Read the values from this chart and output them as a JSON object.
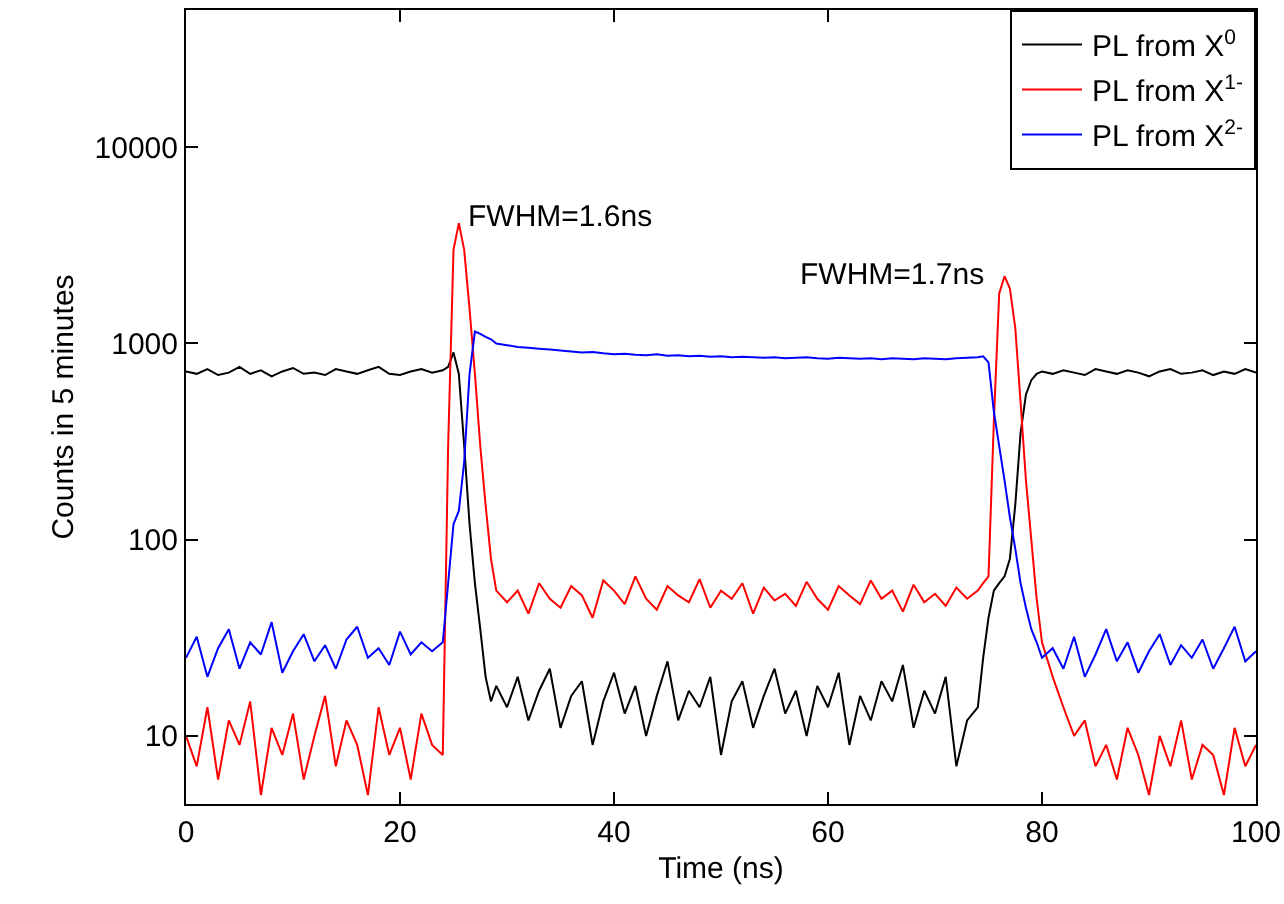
{
  "chart_data": {
    "type": "line",
    "xlabel": "Time (ns)",
    "ylabel": "Counts in 5 minutes",
    "log": "y",
    "legend": "top right",
    "xlim": [
      0,
      100
    ],
    "xticks": [
      0,
      20,
      40,
      60,
      80,
      100
    ],
    "ylim": [
      4.5,
      50000
    ],
    "yticks": [
      10,
      100,
      1000,
      10000
    ],
    "x": [
      0,
      1,
      2,
      3,
      4,
      5,
      6,
      7,
      8,
      9,
      10,
      11,
      12,
      13,
      14,
      15,
      16,
      17,
      18,
      19,
      20,
      21,
      22,
      23,
      24,
      24.5,
      25,
      25.5,
      26,
      26.5,
      27,
      27.5,
      28,
      28.5,
      29,
      30,
      31,
      32,
      33,
      34,
      35,
      36,
      37,
      38,
      39,
      40,
      41,
      42,
      43,
      44,
      45,
      46,
      47,
      48,
      49,
      50,
      51,
      52,
      53,
      54,
      55,
      56,
      57,
      58,
      59,
      60,
      61,
      62,
      63,
      64,
      65,
      66,
      67,
      68,
      69,
      70,
      71,
      72,
      73,
      74,
      74.5,
      75,
      75.5,
      76,
      76.5,
      77,
      77.5,
      78,
      78.5,
      79,
      79.5,
      80,
      81,
      82,
      83,
      84,
      85,
      86,
      87,
      88,
      89,
      90,
      91,
      92,
      93,
      94,
      95,
      96,
      97,
      98,
      99,
      100
    ],
    "series": [
      {
        "name": "PL from X$^{0}$",
        "color": "#000000",
        "values": [
          720,
          700,
          740,
          690,
          710,
          760,
          700,
          730,
          680,
          720,
          750,
          700,
          710,
          690,
          740,
          720,
          700,
          730,
          760,
          700,
          690,
          720,
          740,
          710,
          730,
          760,
          900,
          700,
          300,
          120,
          60,
          35,
          20,
          15,
          18,
          14,
          20,
          12,
          17,
          22,
          11,
          16,
          19,
          9,
          15,
          21,
          13,
          18,
          10,
          16,
          24,
          12,
          17,
          14,
          20,
          8,
          15,
          19,
          11,
          16,
          22,
          13,
          17,
          10,
          18,
          14,
          21,
          9,
          16,
          12,
          19,
          15,
          23,
          11,
          17,
          13,
          20,
          7,
          12,
          14,
          25,
          40,
          55,
          60,
          65,
          80,
          150,
          350,
          550,
          650,
          700,
          720,
          700,
          730,
          710,
          690,
          740,
          720,
          700,
          730,
          710,
          680,
          720,
          740,
          700,
          710,
          730,
          690,
          720,
          700,
          740,
          710
        ]
      },
      {
        "name": "PL from X$^{1-}$",
        "color": "#ff0000",
        "values": [
          10,
          7,
          14,
          6,
          12,
          9,
          15,
          5,
          11,
          8,
          13,
          6,
          10,
          16,
          7,
          12,
          9,
          5,
          14,
          8,
          11,
          6,
          13,
          9,
          8,
          300,
          3000,
          4100,
          3000,
          1500,
          700,
          300,
          150,
          80,
          55,
          48,
          55,
          42,
          60,
          50,
          45,
          58,
          52,
          40,
          62,
          55,
          47,
          65,
          50,
          44,
          58,
          52,
          48,
          63,
          45,
          55,
          50,
          60,
          42,
          57,
          49,
          53,
          46,
          61,
          50,
          44,
          58,
          52,
          47,
          62,
          50,
          55,
          43,
          59,
          48,
          53,
          46,
          57,
          50,
          55,
          60,
          65,
          400,
          1800,
          2200,
          1900,
          1200,
          500,
          200,
          100,
          50,
          30,
          20,
          14,
          10,
          12,
          7,
          9,
          6,
          11,
          8,
          5,
          10,
          7,
          12,
          6,
          9,
          8,
          5,
          11,
          7,
          9
        ]
      },
      {
        "name": "PL from X$^{2-}$",
        "color": "#0000ff",
        "values": [
          25,
          32,
          20,
          28,
          35,
          22,
          30,
          26,
          38,
          21,
          27,
          33,
          24,
          29,
          22,
          31,
          36,
          25,
          28,
          23,
          34,
          26,
          30,
          27,
          30,
          60,
          120,
          140,
          250,
          700,
          1150,
          1120,
          1080,
          1050,
          1000,
          980,
          960,
          950,
          940,
          930,
          920,
          910,
          900,
          905,
          890,
          880,
          885,
          875,
          870,
          880,
          865,
          870,
          860,
          865,
          855,
          860,
          850,
          855,
          850,
          845,
          850,
          840,
          845,
          850,
          840,
          835,
          845,
          840,
          835,
          840,
          830,
          840,
          835,
          830,
          840,
          835,
          830,
          840,
          845,
          850,
          860,
          800,
          450,
          300,
          200,
          130,
          90,
          60,
          45,
          35,
          30,
          25,
          28,
          22,
          32,
          20,
          26,
          35,
          24,
          30,
          21,
          27,
          33,
          23,
          29,
          25,
          31,
          22,
          28,
          36,
          24,
          27
        ]
      }
    ],
    "annotations": [
      "FWHM=1.6ns",
      "FWHM=1.7ns"
    ]
  }
}
